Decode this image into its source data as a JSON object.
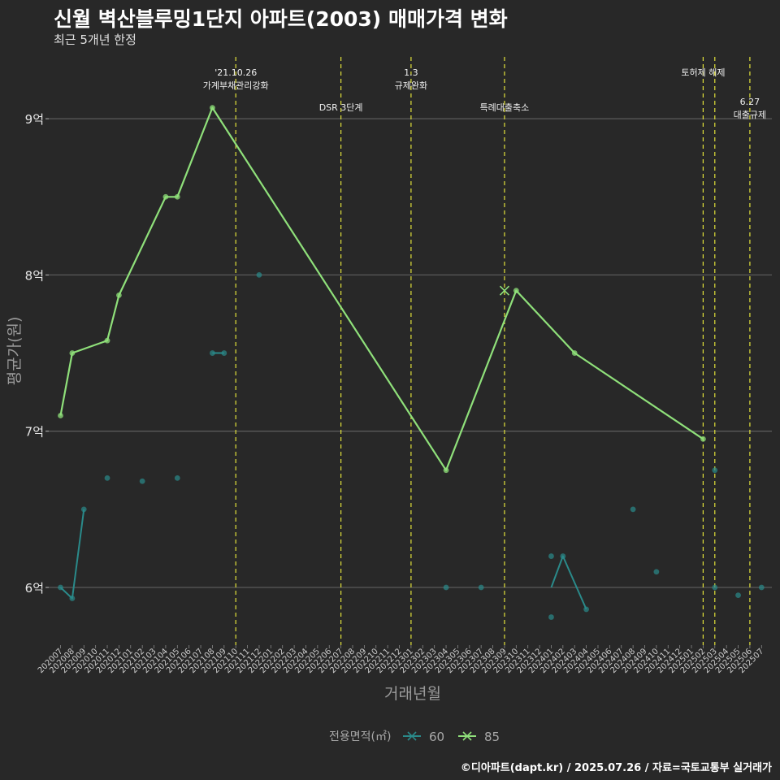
{
  "title": "신월 벽산블루밍1단지 아파트(2003) 매매가격 변화",
  "subtitle": "최근 5개년 한정",
  "caption": "©디아파트(dapt.kr) / 2025.07.26 / 자료=국토교통부 실거래가",
  "colors": {
    "background": "#282828",
    "s60": "#2a8a8a",
    "s85": "#8fe07a",
    "event": "#e2e23a"
  },
  "chart_data": {
    "type": "line",
    "title": "신월 벽산블루밍1단지 아파트(2003) 매매가격 변화",
    "subtitle": "최근 5개년 한정",
    "xlabel": "거래년월",
    "ylabel": "평균가(원)",
    "categories": [
      "202007",
      "202008",
      "202009",
      "202010",
      "202011",
      "202012",
      "202101",
      "202102",
      "202103",
      "202104",
      "202105",
      "202106",
      "202107",
      "202108",
      "202109",
      "202110",
      "202111",
      "202112",
      "202201",
      "202202",
      "202203",
      "202204",
      "202205",
      "202206",
      "202207",
      "202208",
      "202209",
      "202210",
      "202211",
      "202212",
      "202301",
      "202302",
      "202303",
      "202304",
      "202305",
      "202306",
      "202307",
      "202308",
      "202309",
      "202310",
      "202311",
      "202312",
      "202401",
      "202402",
      "202403",
      "202404",
      "202405",
      "202406",
      "202407",
      "202408",
      "202409",
      "202410",
      "202411",
      "202412",
      "202501",
      "202502",
      "202503",
      "202504",
      "202505",
      "202506",
      "202507"
    ],
    "y_ticks": [
      {
        "value": 6.0,
        "label": "6억"
      },
      {
        "value": 7.0,
        "label": "7억"
      },
      {
        "value": 8.0,
        "label": "8억"
      },
      {
        "value": 9.0,
        "label": "9억"
      }
    ],
    "ylim": [
      5.67,
      9.37
    ],
    "grid": true,
    "legend": {
      "position": "bottom",
      "title": "전용면적(㎡)"
    },
    "series": [
      {
        "name": "60",
        "color": "#2a8a8a",
        "line": [
          [
            "202007",
            6.0
          ],
          [
            "202008",
            5.93
          ],
          [
            "202009",
            6.5
          ]
        ],
        "line2": [
          [
            "202108",
            7.5
          ],
          [
            "202109",
            7.5
          ]
        ],
        "line3": [
          [
            "202401",
            6.0
          ],
          [
            "202402",
            6.2
          ],
          [
            "202404",
            5.86
          ]
        ],
        "points": [
          [
            "202007",
            6.0
          ],
          [
            "202008",
            5.93
          ],
          [
            "202009",
            6.5
          ],
          [
            "202011",
            6.7
          ],
          [
            "202102",
            6.68
          ],
          [
            "202105",
            6.7
          ],
          [
            "202108",
            7.5
          ],
          [
            "202109",
            7.5
          ],
          [
            "202112",
            8.0
          ],
          [
            "202304",
            6.0
          ],
          [
            "202307",
            6.0
          ],
          [
            "202401",
            6.2
          ],
          [
            "202401",
            5.81
          ],
          [
            "202402",
            6.2
          ],
          [
            "202404",
            5.86
          ],
          [
            "202408",
            6.5
          ],
          [
            "202410",
            6.1
          ],
          [
            "202503",
            6.75
          ],
          [
            "202503",
            6.0
          ],
          [
            "202505",
            5.95
          ],
          [
            "202507",
            6.0
          ]
        ]
      },
      {
        "name": "85",
        "color": "#8fe07a",
        "line": [
          [
            "202007",
            7.1
          ],
          [
            "202008",
            7.5
          ],
          [
            "202011",
            7.58
          ],
          [
            "202012",
            7.87
          ],
          [
            "202104",
            8.5
          ],
          [
            "202105",
            8.5
          ],
          [
            "202108",
            9.07
          ],
          [
            "202304",
            6.75
          ],
          [
            "202310",
            7.9
          ],
          [
            "202403",
            7.5
          ],
          [
            "202502",
            6.95
          ]
        ],
        "points": [
          [
            "202007",
            7.1
          ],
          [
            "202008",
            7.5
          ],
          [
            "202011",
            7.58
          ],
          [
            "202012",
            7.87
          ],
          [
            "202104",
            8.5
          ],
          [
            "202105",
            8.5
          ],
          [
            "202108",
            9.07
          ],
          [
            "202304",
            6.75
          ],
          [
            "202310",
            7.9
          ],
          [
            "202403",
            7.5
          ],
          [
            "202502",
            6.95
          ]
        ],
        "cross_marker": [
          "202309",
          7.9
        ]
      }
    ],
    "events": [
      {
        "x": 15.0,
        "lines": [
          "'21.10.26",
          "가계부채관리강화"
        ],
        "row": 0
      },
      {
        "x": 24.0,
        "lines": [
          "DSR 3단계"
        ],
        "row": 1
      },
      {
        "x": 30.0,
        "lines": [
          "1.3",
          "규제완화"
        ],
        "row": 0
      },
      {
        "x": 38.0,
        "lines": [
          "특례대출축소"
        ],
        "row": 1
      },
      {
        "x": 55.0,
        "lines": [
          "토허제 해제"
        ],
        "row": 0
      },
      {
        "x": 56.0,
        "lines": [],
        "row": 0
      },
      {
        "x": 59.0,
        "lines": [
          "6.27",
          "대출규제"
        ],
        "row": 2
      }
    ]
  }
}
